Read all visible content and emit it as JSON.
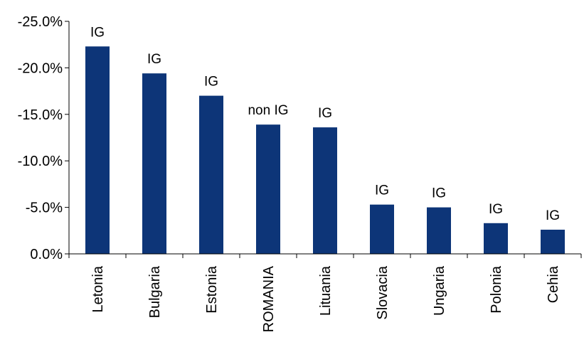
{
  "chart_data": {
    "type": "bar",
    "categories": [
      "Letonia",
      "Bulgaria",
      "Estonia",
      "ROMANIA",
      "Lituania",
      "Slovacia",
      "Ungaria",
      "Polonia",
      "Cehia"
    ],
    "values": [
      -22.3,
      -19.4,
      -17.0,
      -13.9,
      -13.6,
      -5.3,
      -5.0,
      -3.3,
      -2.6
    ],
    "data_labels": [
      "IG",
      "IG",
      "IG",
      "non IG",
      "IG",
      "IG",
      "IG",
      "IG",
      "IG"
    ],
    "y_ticks": [
      "-25.0%",
      "-20.0%",
      "-15.0%",
      "-10.0%",
      "-5.0%",
      "0.0%"
    ],
    "y_tick_values": [
      -25,
      -20,
      -15,
      -10,
      -5,
      0
    ],
    "ylim": [
      0,
      -25
    ],
    "y_inverted": true,
    "title": "",
    "xlabel": "",
    "ylabel": "",
    "grid": false,
    "bar_color": "#0D3578",
    "axis_color": "#000000"
  }
}
